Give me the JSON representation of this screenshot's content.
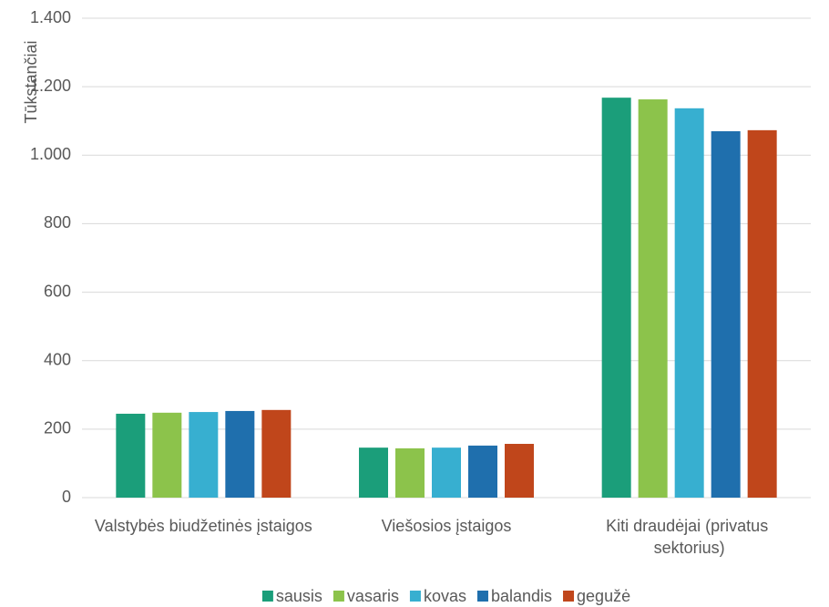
{
  "chart_data": {
    "type": "bar",
    "y_label": "Tūkstančiai",
    "categories": [
      "Valstybės biudžetinės įstaigos",
      "Viešosios įstaigos",
      "Kiti draudėjai (privatus sektorius)"
    ],
    "series": [
      {
        "name": "sausis",
        "color": "#1b9e7a",
        "values": [
          245,
          146,
          1168
        ]
      },
      {
        "name": "vasaris",
        "color": "#8cc34b",
        "values": [
          248,
          144,
          1163
        ]
      },
      {
        "name": "kovas",
        "color": "#37afd0",
        "values": [
          250,
          146,
          1137
        ]
      },
      {
        "name": "balandis",
        "color": "#1f6fad",
        "values": [
          253,
          152,
          1070
        ]
      },
      {
        "name": "gegužė",
        "color": "#c0461b",
        "values": [
          256,
          157,
          1073
        ]
      }
    ],
    "ylim": [
      0,
      1400
    ],
    "yticks": [
      0,
      200,
      400,
      600,
      800,
      {
        "value": 1000,
        "label": "1.000"
      },
      {
        "value": 1200,
        "label": "1.200"
      },
      {
        "value": 1400,
        "label": "1.400"
      }
    ],
    "grid": true,
    "legend": "bottom"
  }
}
